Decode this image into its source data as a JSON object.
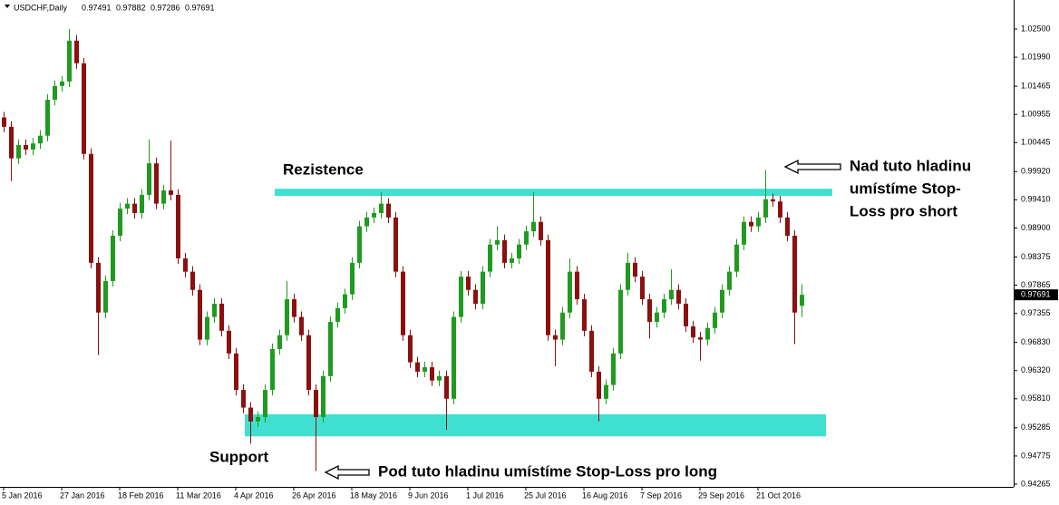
{
  "chart_data": {
    "type": "candlestick",
    "title": "USDCHF,Daily",
    "open": [
      1.009,
      1.0073,
      1.0016,
      1.004,
      1.0032,
      1.0043,
      1.0057,
      1.0122,
      1.0147,
      1.0155,
      1.0229,
      1.0188,
      1.0024,
      0.9827,
      0.9737,
      0.9794,
      0.9876,
      0.9925,
      0.9934,
      0.9917,
      0.995,
      1.0007,
      0.9934,
      0.9958,
      0.995,
      0.9835,
      0.9811,
      0.9778,
      0.9688,
      0.9729,
      0.9753,
      0.9704,
      0.9663,
      0.9597,
      0.9565,
      0.954,
      0.9548,
      0.9597,
      0.9671,
      0.9696,
      0.9761,
      0.9729,
      0.9696,
      0.9597,
      0.9548,
      0.9622,
      0.972,
      0.9745,
      0.977,
      0.9827,
      0.9893,
      0.9909,
      0.9917,
      0.9934,
      0.9909,
      0.9811,
      0.9696,
      0.9647,
      0.963,
      0.9638,
      0.9614,
      0.9622,
      0.9581,
      0.9729,
      0.9802,
      0.9778,
      0.9753,
      0.9811,
      0.986,
      0.9868,
      0.9827,
      0.9835,
      0.986,
      0.9884,
      0.9901,
      0.9868,
      0.9696,
      0.9688,
      0.9737,
      0.9811,
      0.9761,
      0.9704,
      0.963,
      0.9581,
      0.9606,
      0.9663,
      0.9778,
      0.9827,
      0.9802,
      0.9761,
      0.972,
      0.9737,
      0.9761,
      0.9778,
      0.9753,
      0.9712,
      0.9692,
      0.9688,
      0.9709,
      0.9737,
      0.9778,
      0.9811,
      0.986,
      0.9901,
      0.9893,
      0.9909,
      0.9942,
      0.9938,
      0.9909,
      0.9876,
      0.97491
    ],
    "high": [
      1.01,
      1.0083,
      1.005,
      1.005,
      1.0053,
      1.0067,
      1.0132,
      1.0157,
      1.0165,
      1.025,
      1.0239,
      1.0198,
      1.0034,
      0.9837,
      0.9804,
      0.9886,
      0.9935,
      0.9944,
      0.9944,
      0.996,
      1.005,
      1.0017,
      0.9968,
      1.0048,
      0.996,
      0.9845,
      0.9821,
      0.9788,
      0.9739,
      0.9763,
      0.9763,
      0.9714,
      0.9673,
      0.9607,
      0.9575,
      0.9558,
      0.9607,
      0.9681,
      0.9706,
      0.9794,
      0.9771,
      0.9739,
      0.9706,
      0.9607,
      0.9632,
      0.973,
      0.9755,
      0.978,
      0.9837,
      0.9903,
      0.9919,
      0.9927,
      0.9955,
      0.9944,
      0.9919,
      0.9821,
      0.9706,
      0.9657,
      0.9648,
      0.9648,
      0.9632,
      0.9632,
      0.9739,
      0.9812,
      0.9812,
      0.9788,
      0.9821,
      0.987,
      0.9893,
      0.9878,
      0.9845,
      0.987,
      0.9894,
      0.9955,
      0.9911,
      0.9878,
      0.9706,
      0.9747,
      0.9835,
      0.9821,
      0.9771,
      0.9714,
      0.964,
      0.9616,
      0.9673,
      0.9788,
      0.9845,
      0.9837,
      0.9812,
      0.9771,
      0.9747,
      0.9771,
      0.9815,
      0.9788,
      0.9763,
      0.9722,
      0.9702,
      0.9719,
      0.9747,
      0.9788,
      0.9821,
      0.987,
      0.9911,
      0.9911,
      0.9919,
      0.9995,
      0.9952,
      0.9948,
      0.9919,
      0.9886,
      0.97882
    ],
    "low": [
      1.0063,
      0.9975,
      1.0006,
      1.0022,
      1.0022,
      1.0033,
      1.0047,
      1.0112,
      1.0137,
      1.0145,
      1.0178,
      1.0014,
      0.9817,
      0.966,
      0.9727,
      0.9784,
      0.9866,
      0.9915,
      0.9907,
      0.9907,
      0.994,
      0.9924,
      0.9924,
      0.994,
      0.9825,
      0.9801,
      0.9768,
      0.9678,
      0.9678,
      0.9719,
      0.9694,
      0.9653,
      0.9587,
      0.9555,
      0.95,
      0.953,
      0.9538,
      0.9587,
      0.9661,
      0.9686,
      0.9719,
      0.9686,
      0.9587,
      0.945,
      0.9538,
      0.9612,
      0.971,
      0.9735,
      0.976,
      0.9817,
      0.9883,
      0.9899,
      0.9907,
      0.9899,
      0.9801,
      0.9686,
      0.9637,
      0.962,
      0.962,
      0.9604,
      0.9604,
      0.9525,
      0.9571,
      0.9719,
      0.9768,
      0.9743,
      0.9743,
      0.9801,
      0.985,
      0.9817,
      0.9817,
      0.9825,
      0.985,
      0.9874,
      0.9858,
      0.9686,
      0.964,
      0.9678,
      0.9727,
      0.9751,
      0.9694,
      0.962,
      0.954,
      0.9571,
      0.9596,
      0.9653,
      0.9768,
      0.9792,
      0.9751,
      0.969,
      0.971,
      0.9727,
      0.9751,
      0.9743,
      0.9702,
      0.9682,
      0.965,
      0.9678,
      0.9699,
      0.9727,
      0.9768,
      0.9801,
      0.985,
      0.9883,
      0.9883,
      0.9899,
      0.9928,
      0.9899,
      0.9866,
      0.968,
      0.97286
    ],
    "close": [
      1.0073,
      1.0016,
      1.004,
      1.0032,
      1.0043,
      1.0057,
      1.0122,
      1.0147,
      1.0155,
      1.0229,
      1.0188,
      1.0024,
      0.9827,
      0.9737,
      0.9794,
      0.9876,
      0.9925,
      0.9934,
      0.9917,
      0.995,
      1.0007,
      0.9934,
      0.9958,
      0.995,
      0.9835,
      0.9811,
      0.9778,
      0.9688,
      0.9729,
      0.9753,
      0.9704,
      0.9663,
      0.9597,
      0.9565,
      0.954,
      0.9548,
      0.9597,
      0.9671,
      0.9696,
      0.9761,
      0.9729,
      0.9696,
      0.9597,
      0.9548,
      0.9622,
      0.972,
      0.9745,
      0.977,
      0.9827,
      0.9893,
      0.9909,
      0.9917,
      0.9934,
      0.9909,
      0.9811,
      0.9696,
      0.9647,
      0.963,
      0.9638,
      0.9614,
      0.9622,
      0.9581,
      0.9729,
      0.9802,
      0.9778,
      0.9753,
      0.9811,
      0.986,
      0.9868,
      0.9827,
      0.9835,
      0.986,
      0.9884,
      0.9901,
      0.9868,
      0.9696,
      0.9688,
      0.9737,
      0.9811,
      0.9761,
      0.9704,
      0.963,
      0.9581,
      0.9606,
      0.9663,
      0.9778,
      0.9827,
      0.9802,
      0.9761,
      0.972,
      0.9737,
      0.9761,
      0.9778,
      0.9753,
      0.9712,
      0.9692,
      0.9688,
      0.9709,
      0.9737,
      0.9778,
      0.9811,
      0.986,
      0.9901,
      0.9893,
      0.9909,
      0.9942,
      0.9938,
      0.9909,
      0.9876,
      0.9737,
      0.97691
    ],
    "up_color": "#1f9b1f",
    "down_color": "#8b1010",
    "ylim": [
      0.94216,
      1.03025
    ],
    "yticks": [
      {
        "value": 1.025,
        "label": "1.02500"
      },
      {
        "value": 1.0199,
        "label": "1.01990"
      },
      {
        "value": 1.01465,
        "label": "1.01465"
      },
      {
        "value": 1.00955,
        "label": "1.00955"
      },
      {
        "value": 1.00445,
        "label": "1.00445"
      },
      {
        "value": 0.9992,
        "label": "0.99920"
      },
      {
        "value": 0.9941,
        "label": "0.99410"
      },
      {
        "value": 0.989,
        "label": "0.98900"
      },
      {
        "value": 0.98375,
        "label": "0.98375"
      },
      {
        "value": 0.97865,
        "label": "0.97865"
      },
      {
        "value": 0.97355,
        "label": "0.97355"
      },
      {
        "value": 0.9683,
        "label": "0.96830"
      },
      {
        "value": 0.9632,
        "label": "0.96320"
      },
      {
        "value": 0.9581,
        "label": "0.95810"
      },
      {
        "value": 0.95285,
        "label": "0.95285"
      },
      {
        "value": 0.94775,
        "label": "0.94775"
      },
      {
        "value": 0.94265,
        "label": "0.94265"
      }
    ],
    "xticks": [
      {
        "value": 0,
        "label": "5 Jan 2016"
      },
      {
        "value": 8,
        "label": "27 Jan 2016"
      },
      {
        "value": 16,
        "label": "18 Feb 2016"
      },
      {
        "value": 24,
        "label": "11 Mar 2016"
      },
      {
        "value": 32,
        "label": "4 Apr 2016"
      },
      {
        "value": 40,
        "label": "26 Apr 2016"
      },
      {
        "value": 48,
        "label": "18 May 2016"
      },
      {
        "value": 56,
        "label": "9 Jun 2016"
      },
      {
        "value": 64,
        "label": "1 Jul 2016"
      },
      {
        "value": 72,
        "label": "25 Jul 2016"
      },
      {
        "value": 80,
        "label": "16 Aug 2016"
      },
      {
        "value": 88,
        "label": "7 Sep 2016"
      },
      {
        "value": 96,
        "label": "29 Sep 2016"
      },
      {
        "value": 104,
        "label": "21 Oct 2016"
      }
    ],
    "zones": [
      {
        "label": "Rezistence",
        "range": [
          0.9948,
          0.9961
        ],
        "color": "#40e0d0"
      },
      {
        "label": "Support",
        "range": [
          0.9513,
          0.9553
        ],
        "color": "#40e0d0"
      }
    ],
    "annotations": [
      {
        "lines": [
          "Nad tuto hladinu",
          "umístíme Stop-",
          "Loss pro short"
        ]
      },
      {
        "lines": [
          "Pod tuto hladinu umístíme Stop-Loss pro long"
        ]
      }
    ]
  }
}
